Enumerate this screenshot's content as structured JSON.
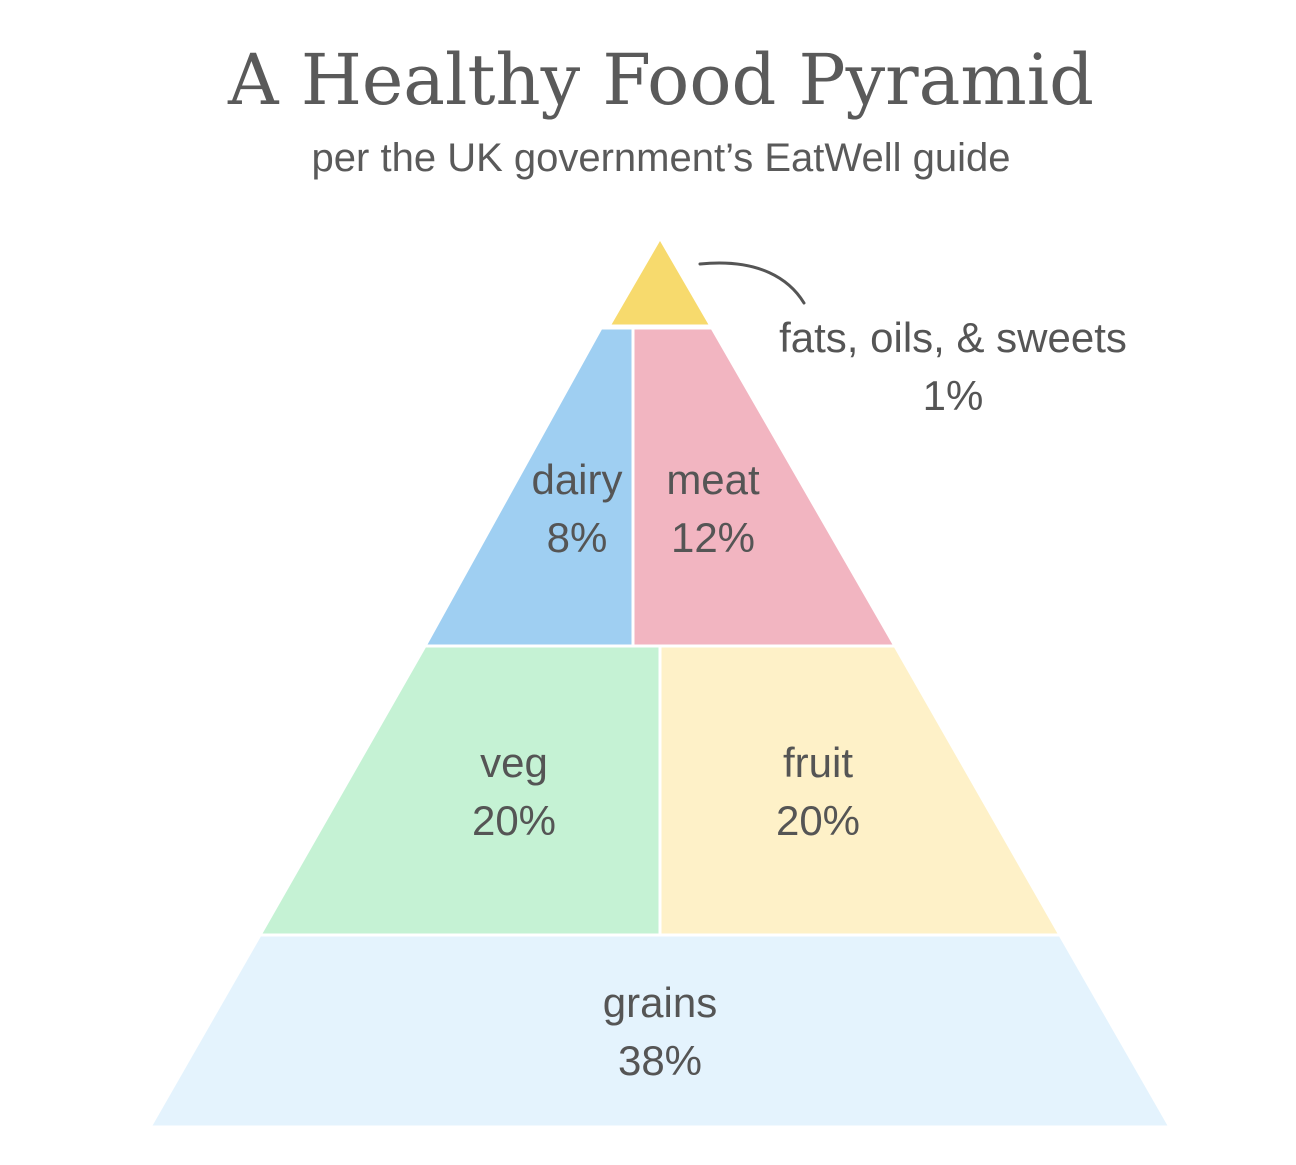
{
  "title": "A Healthy Food Pyramid",
  "subtitle": "per the UK government’s EatWell guide",
  "sections": {
    "fats": {
      "name": "fats, oils, & sweets",
      "value": "1%",
      "color": "#f7da6d"
    },
    "dairy": {
      "name": "dairy",
      "value": "8%",
      "color": "#9fcff2"
    },
    "meat": {
      "name": "meat",
      "value": "12%",
      "color": "#f2b5c1"
    },
    "veg": {
      "name": "veg",
      "value": "20%",
      "color": "#c5f2d4"
    },
    "fruit": {
      "name": "fruit",
      "value": "20%",
      "color": "#fef1c8"
    },
    "grains": {
      "name": "grains",
      "value": "38%",
      "color": "#e4f3fd"
    }
  }
}
